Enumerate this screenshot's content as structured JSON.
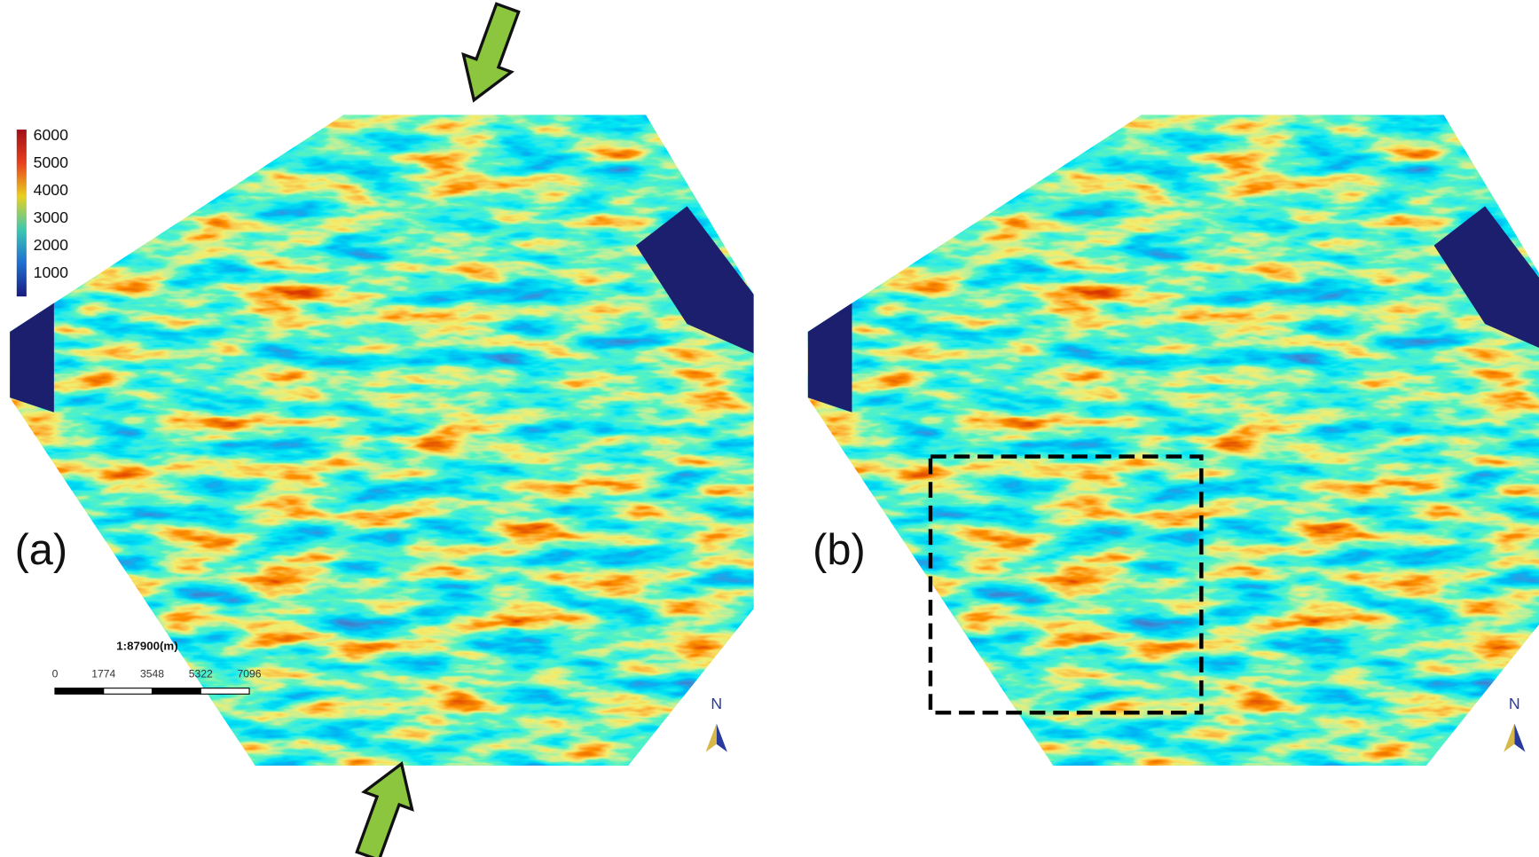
{
  "panels": [
    {
      "label": "(a)",
      "north": "N"
    },
    {
      "label": "(b)",
      "north": "N"
    }
  ],
  "colorbar": {
    "ticks": [
      6000,
      5000,
      4000,
      3000,
      2000,
      1000
    ]
  },
  "scale_bar": {
    "ratio": "1:87900(m)",
    "ticks": [
      0,
      1774,
      3548,
      5322,
      7096
    ]
  }
}
